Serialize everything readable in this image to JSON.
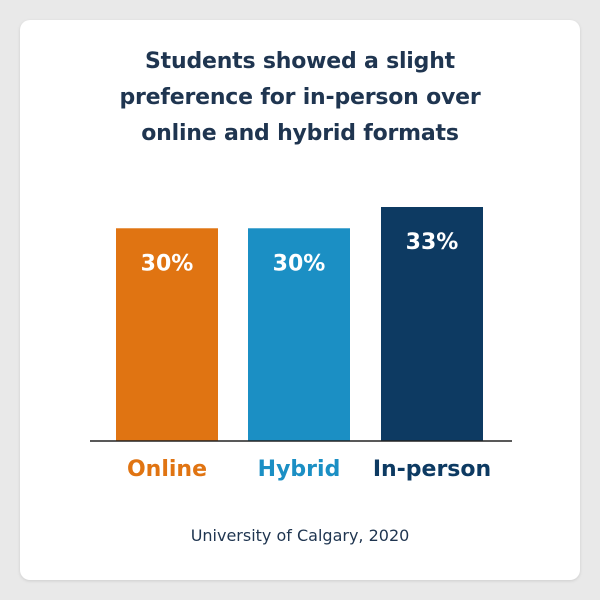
{
  "source": "University of Calgary, 2020",
  "colors": {
    "online": "#e07412",
    "hybrid": "#1b8fc4",
    "in_person": "#0d3a62",
    "title": "#1f3550",
    "axis": "#222222"
  },
  "chart_data": {
    "type": "bar",
    "title_lines": [
      "Students showed a slight",
      "preference for in-person over",
      "online and hybrid formats"
    ],
    "xlabel": "",
    "ylabel": "",
    "ylim": [
      0,
      33
    ],
    "grid": false,
    "legend": "none",
    "categories": [
      "Online",
      "Hybrid",
      "In-person"
    ],
    "values": [
      30,
      30,
      33
    ],
    "value_labels": [
      "30%",
      "30%",
      "33%"
    ],
    "bar_colors": [
      "#e07412",
      "#1b8fc4",
      "#0d3a62"
    ]
  }
}
